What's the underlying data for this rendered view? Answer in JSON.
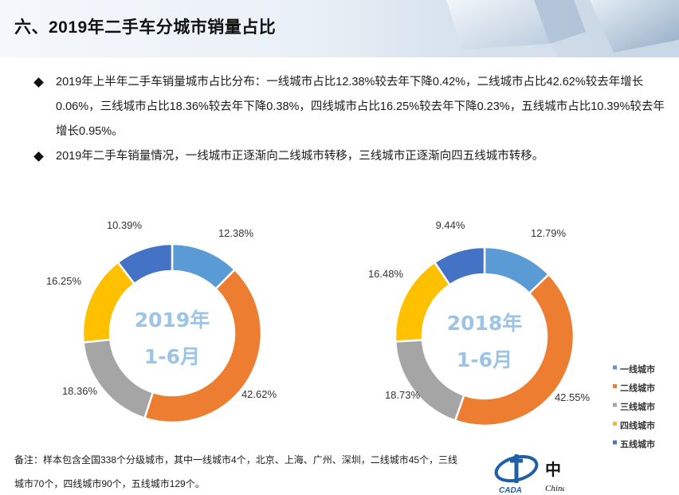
{
  "page": {
    "title": "六、2019年二手车分城市销量占比",
    "bullets": [
      "2019年上半年二手车销量城市占比分布：一线城市占比12.38%较去年下降0.42%，二线城市占比42.62%较去年增长0.06%，三线城市占比18.36%较去年下降0.38%，四线城市占比16.25%较去年下降0.23%，五线城市占比10.39%较去年增长0.95%。",
      "2019年二手车销量情况，一线城市正逐渐向二线城市转移，三线城市正逐渐向四五线城市转移。"
    ],
    "footnote": "备注：样本包含全国338个分级城市，其中一线城市4个，北京、上海、广州、深圳，二线城市45个，三线城市70个，四线城市90个，五线城市129个。",
    "logo": {
      "mark": "CADA",
      "cn": "中",
      "en": "China"
    }
  },
  "colors": {
    "一线城市": "#5b9bd5",
    "二线城市": "#ed7d31",
    "三线城市": "#a5a5a5",
    "四线城市": "#ffc000",
    "五线城市": "#4472c4",
    "center_text": "#9dc3e6"
  },
  "chart_data": [
    {
      "type": "pie",
      "style": "donut",
      "center_label": [
        "2019年",
        "1-6月"
      ],
      "categories": [
        "一线城市",
        "二线城市",
        "三线城市",
        "四线城市",
        "五线城市"
      ],
      "values": [
        12.38,
        42.62,
        18.36,
        16.25,
        10.39
      ],
      "data_labels": [
        "12.38%",
        "42.62%",
        "18.36%",
        "16.25%",
        "10.39%"
      ],
      "legend": "none"
    },
    {
      "type": "pie",
      "style": "donut",
      "center_label": [
        "2018年",
        "1-6月"
      ],
      "categories": [
        "一线城市",
        "二线城市",
        "三线城市",
        "四线城市",
        "五线城市"
      ],
      "values": [
        12.79,
        42.55,
        18.73,
        16.48,
        9.44
      ],
      "data_labels": [
        "12.79%",
        "42.55%",
        "18.73%",
        "16.48%",
        "9.44%"
      ],
      "legend": "right"
    }
  ]
}
